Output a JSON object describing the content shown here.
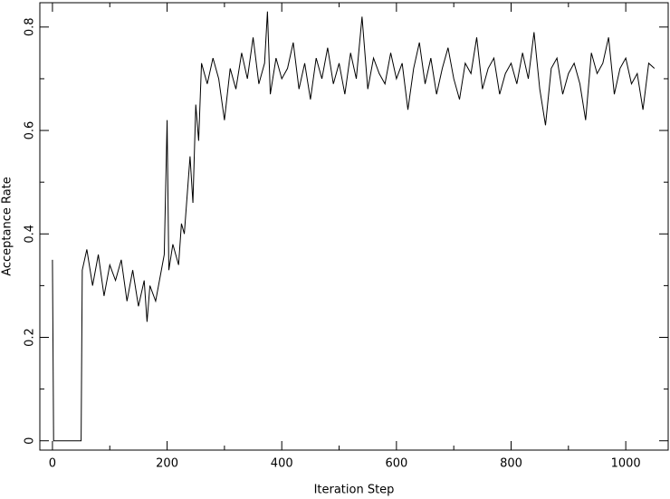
{
  "chart_data": {
    "type": "line",
    "xlabel": "Iteration Step",
    "ylabel": "Acceptance Rate",
    "color": "#000000",
    "xlim": [
      -22,
      1074
    ],
    "ylim": [
      -0.018,
      0.847
    ],
    "xticks": [
      0,
      200,
      400,
      600,
      800,
      1000
    ],
    "yticks": [
      0,
      0.2,
      0.4,
      0.6,
      0.8
    ],
    "xminorticks": [
      100,
      300,
      500,
      700,
      900
    ],
    "yminorticks": [
      0.1,
      0.3,
      0.5,
      0.7
    ],
    "x": [
      0,
      1,
      2,
      50,
      52,
      60,
      70,
      80,
      90,
      100,
      110,
      120,
      130,
      140,
      150,
      160,
      165,
      170,
      180,
      190,
      195,
      200,
      203,
      210,
      220,
      225,
      230,
      240,
      245,
      250,
      255,
      260,
      270,
      280,
      290,
      300,
      310,
      320,
      330,
      340,
      350,
      360,
      370,
      375,
      380,
      390,
      400,
      410,
      420,
      430,
      440,
      450,
      460,
      470,
      480,
      490,
      500,
      510,
      520,
      530,
      540,
      550,
      560,
      570,
      580,
      590,
      600,
      610,
      620,
      630,
      640,
      650,
      660,
      670,
      680,
      690,
      700,
      710,
      720,
      730,
      740,
      750,
      760,
      770,
      780,
      790,
      800,
      810,
      820,
      830,
      840,
      850,
      860,
      870,
      880,
      890,
      900,
      910,
      920,
      930,
      940,
      950,
      960,
      970,
      980,
      990,
      1000,
      1010,
      1020,
      1030,
      1040,
      1050
    ],
    "values": [
      0.35,
      0.18,
      0,
      0,
      0.33,
      0.37,
      0.3,
      0.36,
      0.28,
      0.34,
      0.31,
      0.35,
      0.27,
      0.33,
      0.26,
      0.31,
      0.23,
      0.3,
      0.27,
      0.33,
      0.36,
      0.62,
      0.33,
      0.38,
      0.34,
      0.42,
      0.4,
      0.55,
      0.46,
      0.65,
      0.58,
      0.73,
      0.69,
      0.74,
      0.7,
      0.62,
      0.72,
      0.68,
      0.75,
      0.7,
      0.78,
      0.69,
      0.73,
      0.83,
      0.67,
      0.74,
      0.7,
      0.72,
      0.77,
      0.68,
      0.73,
      0.66,
      0.74,
      0.7,
      0.76,
      0.69,
      0.73,
      0.67,
      0.75,
      0.7,
      0.82,
      0.68,
      0.74,
      0.71,
      0.69,
      0.75,
      0.7,
      0.73,
      0.64,
      0.72,
      0.77,
      0.69,
      0.74,
      0.67,
      0.72,
      0.76,
      0.7,
      0.66,
      0.73,
      0.71,
      0.78,
      0.68,
      0.72,
      0.74,
      0.67,
      0.71,
      0.73,
      0.69,
      0.75,
      0.7,
      0.79,
      0.68,
      0.61,
      0.72,
      0.74,
      0.67,
      0.71,
      0.73,
      0.69,
      0.62,
      0.75,
      0.71,
      0.73,
      0.78,
      0.67,
      0.72,
      0.74,
      0.69,
      0.71,
      0.64,
      0.73,
      0.72
    ]
  }
}
